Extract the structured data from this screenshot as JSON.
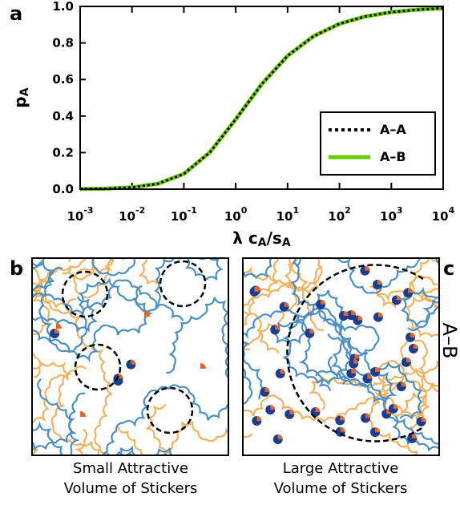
{
  "chart_data": {
    "type": "line",
    "panel_label": "a",
    "xlabel": "λ c_A/s_A",
    "ylabel": "p_A",
    "xscale": "log",
    "x": [
      0.001,
      0.00316,
      0.01,
      0.0316,
      0.1,
      0.316,
      1,
      3.16,
      10,
      31.6,
      100,
      316,
      1000,
      3162,
      10000
    ],
    "series": [
      {
        "name": "A–A",
        "color": "#000000",
        "style": "dotted",
        "values": [
          0.001,
          0.00314,
          0.0098,
          0.0297,
          0.0839,
          0.2015,
          0.382,
          0.574,
          0.73,
          0.837,
          0.905,
          0.945,
          0.969,
          0.982,
          0.99
        ]
      },
      {
        "name": "A–B",
        "color": "#66cc00",
        "style": "solid",
        "values": [
          0.001,
          0.00314,
          0.0098,
          0.0297,
          0.0839,
          0.2015,
          0.382,
          0.574,
          0.73,
          0.837,
          0.905,
          0.945,
          0.969,
          0.982,
          0.99
        ]
      }
    ],
    "xlim": [
      0.001,
      10000
    ],
    "xticks": [
      {
        "value": 0.001,
        "label": "10^-3"
      },
      {
        "value": 0.01,
        "label": "10^-2"
      },
      {
        "value": 0.1,
        "label": "10^-1"
      },
      {
        "value": 1,
        "label": "10^0"
      },
      {
        "value": 10,
        "label": "10^1"
      },
      {
        "value": 100,
        "label": "10^2"
      },
      {
        "value": 1000,
        "label": "10^3"
      },
      {
        "value": 10000,
        "label": "10^4"
      }
    ],
    "ylim": [
      0,
      1
    ],
    "yticks": [
      {
        "value": 0,
        "label": "0.0"
      },
      0.2,
      0.4,
      0.6,
      0.8,
      {
        "value": 1,
        "label": "1.0"
      }
    ],
    "legend": "lower right"
  },
  "panels": {
    "b": {
      "label": "b",
      "caption": [
        "Small Attractive",
        "Volume of Stickers"
      ]
    },
    "c": {
      "label": "c",
      "caption": [
        "Large Attractive",
        "Volume of Stickers"
      ],
      "side_label": "A–B"
    }
  }
}
